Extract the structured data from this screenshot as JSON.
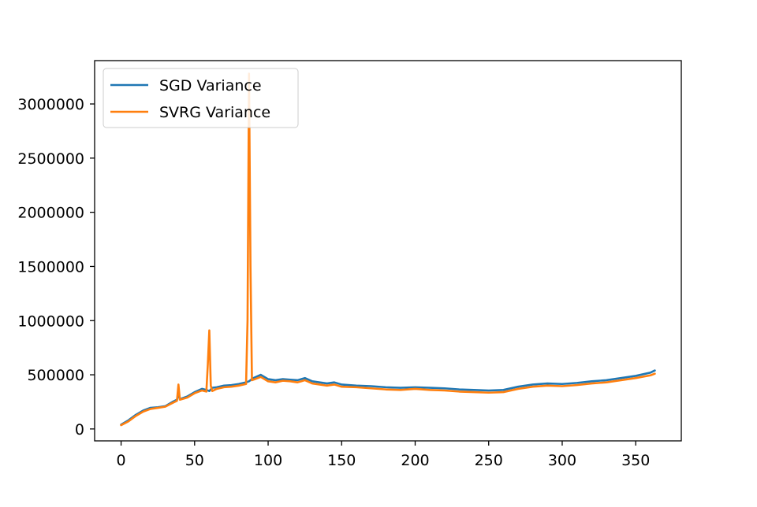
{
  "chart_data": {
    "type": "line",
    "title": "",
    "xlabel": "",
    "ylabel": "",
    "xlim": [
      -18,
      381
    ],
    "ylim": [
      -110000,
      3400000
    ],
    "xticks": [
      0,
      50,
      100,
      150,
      200,
      250,
      300,
      350
    ],
    "xtick_labels": [
      "0",
      "50",
      "100",
      "150",
      "200",
      "250",
      "300",
      "350"
    ],
    "yticks": [
      0,
      500000,
      1000000,
      1500000,
      2000000,
      2500000,
      3000000
    ],
    "ytick_labels": [
      "0",
      "500000",
      "1000000",
      "1500000",
      "2000000",
      "2500000",
      "3000000"
    ],
    "grid": false,
    "legend_position": "upper-left",
    "series": [
      {
        "name": "SGD Variance",
        "color": "#1f77b4",
        "points": [
          [
            0,
            40000
          ],
          [
            5,
            80000
          ],
          [
            10,
            130000
          ],
          [
            15,
            170000
          ],
          [
            20,
            195000
          ],
          [
            25,
            200000
          ],
          [
            30,
            210000
          ],
          [
            35,
            250000
          ],
          [
            38,
            270000
          ],
          [
            39,
            330000
          ],
          [
            40,
            275000
          ],
          [
            45,
            300000
          ],
          [
            50,
            340000
          ],
          [
            55,
            370000
          ],
          [
            58,
            360000
          ],
          [
            60,
            350000
          ],
          [
            62,
            380000
          ],
          [
            65,
            385000
          ],
          [
            70,
            400000
          ],
          [
            75,
            405000
          ],
          [
            80,
            415000
          ],
          [
            85,
            430000
          ],
          [
            87,
            440000
          ],
          [
            90,
            470000
          ],
          [
            95,
            500000
          ],
          [
            100,
            460000
          ],
          [
            105,
            450000
          ],
          [
            110,
            460000
          ],
          [
            115,
            455000
          ],
          [
            120,
            450000
          ],
          [
            125,
            470000
          ],
          [
            130,
            440000
          ],
          [
            135,
            430000
          ],
          [
            140,
            420000
          ],
          [
            145,
            430000
          ],
          [
            150,
            410000
          ],
          [
            160,
            400000
          ],
          [
            170,
            395000
          ],
          [
            180,
            385000
          ],
          [
            190,
            380000
          ],
          [
            200,
            385000
          ],
          [
            210,
            380000
          ],
          [
            220,
            375000
          ],
          [
            230,
            365000
          ],
          [
            240,
            360000
          ],
          [
            250,
            355000
          ],
          [
            260,
            360000
          ],
          [
            270,
            390000
          ],
          [
            280,
            410000
          ],
          [
            290,
            420000
          ],
          [
            300,
            415000
          ],
          [
            310,
            425000
          ],
          [
            320,
            440000
          ],
          [
            330,
            450000
          ],
          [
            340,
            470000
          ],
          [
            350,
            490000
          ],
          [
            360,
            520000
          ],
          [
            363,
            540000
          ]
        ]
      },
      {
        "name": "SVRG Variance",
        "color": "#ff7f0e",
        "points": [
          [
            0,
            35000
          ],
          [
            5,
            70000
          ],
          [
            10,
            120000
          ],
          [
            15,
            160000
          ],
          [
            20,
            185000
          ],
          [
            25,
            195000
          ],
          [
            30,
            205000
          ],
          [
            35,
            240000
          ],
          [
            38,
            260000
          ],
          [
            39,
            410000
          ],
          [
            40,
            270000
          ],
          [
            45,
            290000
          ],
          [
            50,
            330000
          ],
          [
            55,
            355000
          ],
          [
            58,
            345000
          ],
          [
            59,
            600000
          ],
          [
            60,
            910000
          ],
          [
            61,
            400000
          ],
          [
            62,
            350000
          ],
          [
            65,
            370000
          ],
          [
            70,
            385000
          ],
          [
            75,
            390000
          ],
          [
            80,
            400000
          ],
          [
            85,
            415000
          ],
          [
            86,
            1000000
          ],
          [
            87,
            3280000
          ],
          [
            88,
            1500000
          ],
          [
            89,
            450000
          ],
          [
            90,
            455000
          ],
          [
            95,
            480000
          ],
          [
            100,
            440000
          ],
          [
            105,
            430000
          ],
          [
            110,
            445000
          ],
          [
            115,
            440000
          ],
          [
            120,
            430000
          ],
          [
            125,
            450000
          ],
          [
            130,
            420000
          ],
          [
            135,
            410000
          ],
          [
            140,
            400000
          ],
          [
            145,
            410000
          ],
          [
            150,
            390000
          ],
          [
            160,
            385000
          ],
          [
            170,
            375000
          ],
          [
            180,
            365000
          ],
          [
            190,
            360000
          ],
          [
            200,
            370000
          ],
          [
            210,
            360000
          ],
          [
            220,
            355000
          ],
          [
            230,
            345000
          ],
          [
            240,
            340000
          ],
          [
            250,
            335000
          ],
          [
            260,
            340000
          ],
          [
            270,
            370000
          ],
          [
            280,
            390000
          ],
          [
            290,
            400000
          ],
          [
            300,
            395000
          ],
          [
            310,
            405000
          ],
          [
            320,
            420000
          ],
          [
            330,
            430000
          ],
          [
            340,
            450000
          ],
          [
            350,
            470000
          ],
          [
            360,
            495000
          ],
          [
            363,
            510000
          ]
        ]
      }
    ]
  }
}
